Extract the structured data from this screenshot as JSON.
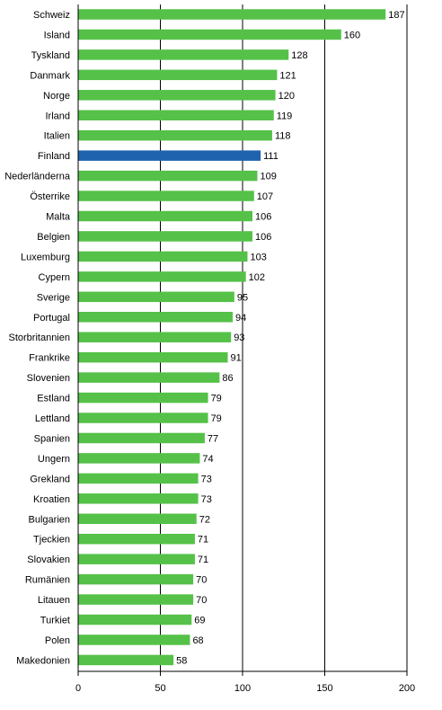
{
  "chart_data": {
    "type": "bar",
    "orientation": "horizontal",
    "categories": [
      "Schweiz",
      "Island",
      "Tyskland",
      "Danmark",
      "Norge",
      "Irland",
      "Italien",
      "Finland",
      "Nederländerna",
      "Österrike",
      "Malta",
      "Belgien",
      "Luxemburg",
      "Cypern",
      "Sverige",
      "Portugal",
      "Storbritannien",
      "Frankrike",
      "Slovenien",
      "Estland",
      "Lettland",
      "Spanien",
      "Ungern",
      "Grekland",
      "Kroatien",
      "Bulgarien",
      "Tjeckien",
      "Slovakien",
      "Rumänien",
      "Litauen",
      "Turkiet",
      "Polen",
      "Makedonien"
    ],
    "values": [
      187,
      160,
      128,
      121,
      120,
      119,
      118,
      111,
      109,
      107,
      106,
      106,
      103,
      102,
      95,
      94,
      93,
      91,
      86,
      79,
      79,
      77,
      74,
      73,
      73,
      72,
      71,
      71,
      70,
      70,
      69,
      68,
      58
    ],
    "value_labels": [
      "187",
      "160",
      "128",
      "121",
      "120",
      "119",
      "118",
      "111",
      "109",
      "107",
      "106",
      "106",
      "103",
      "102",
      "95",
      "94",
      "93",
      "91",
      "86",
      "79",
      "79",
      "77",
      "74",
      "73",
      "73",
      "72",
      "71",
      "71",
      "70",
      "70",
      "69",
      "68",
      "58"
    ],
    "highlight_category": "Finland",
    "colors": {
      "bar": "#55C148",
      "highlight": "#1F63AF",
      "grid": "#000000",
      "axis": "#000000"
    },
    "xlim": [
      0,
      200
    ],
    "xticks": [
      0,
      50,
      100,
      150,
      200
    ],
    "xtick_labels": [
      "0",
      "50",
      "100",
      "150",
      "200"
    ],
    "grid": "vertical",
    "legend": "none",
    "title": "",
    "xlabel": "",
    "ylabel": ""
  }
}
